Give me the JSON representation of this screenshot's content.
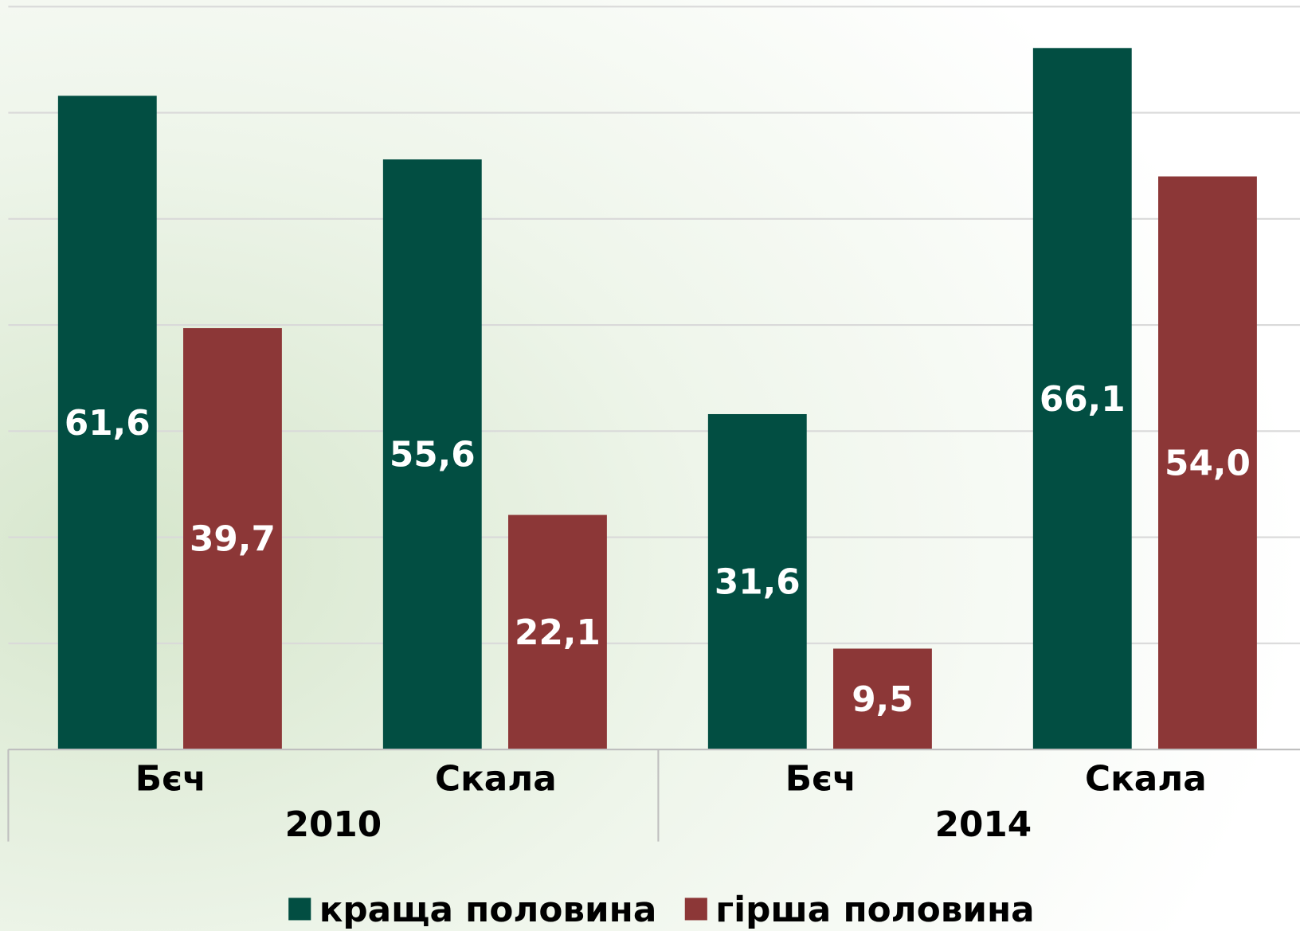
{
  "chart_data": {
    "type": "bar",
    "categories": [
      "Бєч",
      "Скала",
      "Бєч",
      "Скала"
    ],
    "groups": [
      "2010",
      "2014"
    ],
    "series": [
      {
        "name": "краща половина",
        "color": "#024e42",
        "values": [
          61.6,
          55.6,
          31.6,
          66.1
        ],
        "value_labels": [
          "61,6",
          "55,6",
          "31,6",
          "66,1"
        ]
      },
      {
        "name": "гірша половина",
        "color": "#8c3737",
        "values": [
          39.7,
          22.1,
          9.5,
          54.0
        ],
        "value_labels": [
          "39,7",
          "22,1",
          "9,5",
          "54,0"
        ]
      }
    ],
    "ylim": [
      0,
      70
    ],
    "yticks": [
      0,
      10,
      20,
      30,
      40,
      50,
      60,
      70
    ],
    "grid": true
  }
}
